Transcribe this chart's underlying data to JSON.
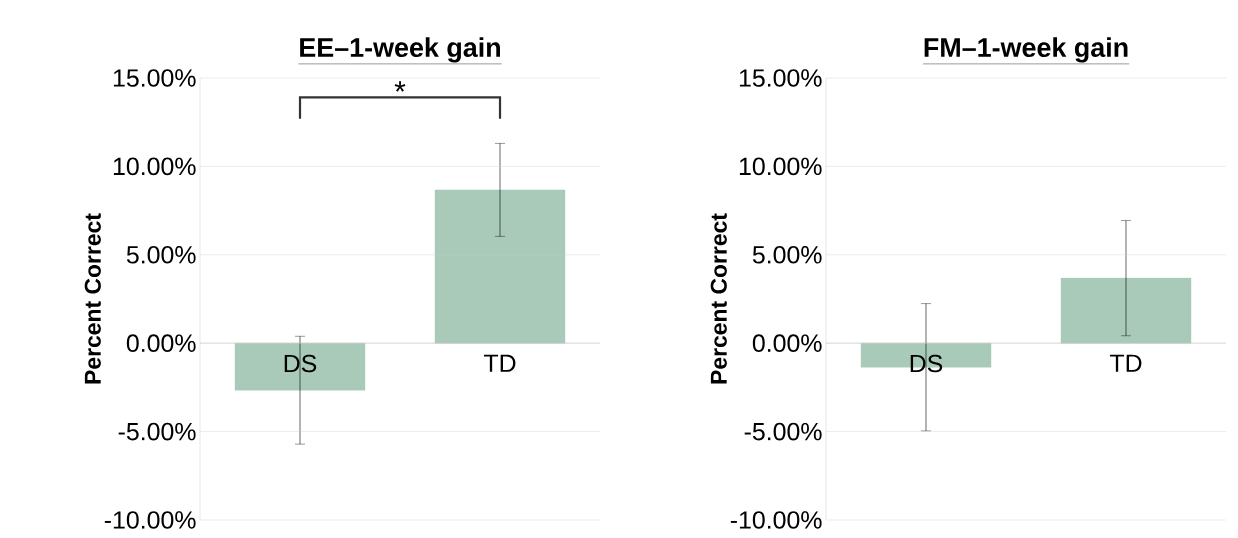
{
  "chart_data": [
    {
      "type": "bar",
      "title": "EE–1-week gain",
      "ylabel": "Percent Correct",
      "categories": [
        "DS",
        "TD"
      ],
      "values": [
        -2.66,
        8.67
      ],
      "errors": [
        3.05,
        2.63
      ],
      "color": "#a9c9b9",
      "ylim": [
        -10,
        15
      ],
      "yticks": [
        {
          "value": -10,
          "label": "-10.00%"
        },
        {
          "value": -5,
          "label": "-5.00%"
        },
        {
          "value": 0,
          "label": "0.00%"
        },
        {
          "value": 5,
          "label": "5.00%"
        },
        {
          "value": 10,
          "label": "10.00%"
        },
        {
          "value": 15,
          "label": "15.00%"
        }
      ],
      "grid": "y",
      "annotations": [
        "*"
      ]
    },
    {
      "type": "bar",
      "title": "FM–1-week gain",
      "ylabel": "Percent Correct",
      "categories": [
        "DS",
        "TD"
      ],
      "values": [
        -1.36,
        3.68
      ],
      "errors": [
        3.6,
        3.26
      ],
      "color": "#a9c9b9",
      "ylim": [
        -10,
        15
      ],
      "yticks": [
        {
          "value": -10,
          "label": "-10.00%"
        },
        {
          "value": -5,
          "label": "-5.00%"
        },
        {
          "value": 0,
          "label": "0.00%"
        },
        {
          "value": 5,
          "label": "5.00%"
        },
        {
          "value": 10,
          "label": "10.00%"
        },
        {
          "value": 15,
          "label": "15.00%"
        }
      ],
      "grid": "y"
    }
  ]
}
